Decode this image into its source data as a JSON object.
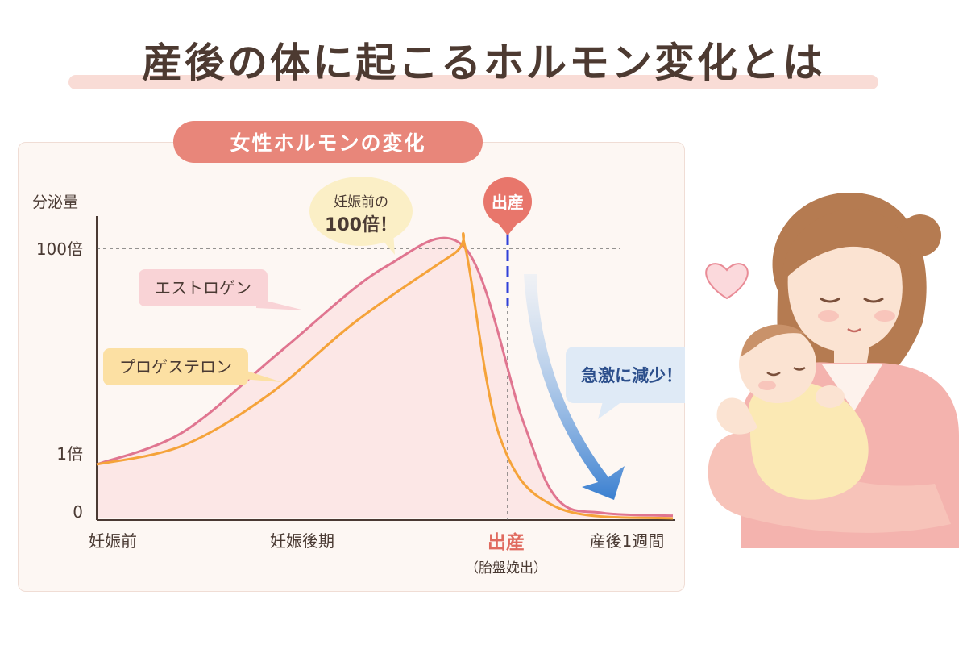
{
  "title": "産後の体に起こるホルモン変化とは",
  "chart_title": "女性ホルモンの変化",
  "colors": {
    "estrogen": "#e07590",
    "progesterone": "#f5a33a",
    "estrogen_postpartum": "#6b73cf",
    "progesterone_postpartum": "#f28a35",
    "birth_badge": "#e8766b",
    "arrow": "#3a7fd0"
  },
  "chart_data": {
    "type": "line",
    "title": "女性ホルモンの変化",
    "ylabel": "分泌量",
    "y_ticks": [
      "0",
      "1倍",
      "100倍"
    ],
    "x_ticks": [
      "妊娠前",
      "妊娠後期",
      "出産",
      "産後1週間"
    ],
    "x_sublabel": "（胎盤娩出）",
    "series": [
      {
        "name": "エストロゲン",
        "x": [
          0,
          0.15,
          0.32,
          0.5,
          0.64,
          0.74,
          0.8,
          0.88,
          1.0
        ],
        "values": [
          0.2,
          0.32,
          0.62,
          0.93,
          1.0,
          0.36,
          0.07,
          0.02,
          0.01
        ]
      },
      {
        "name": "プロゲステロン",
        "x": [
          0,
          0.15,
          0.3,
          0.45,
          0.62,
          0.64,
          0.7,
          0.8,
          1.0
        ],
        "values": [
          0.2,
          0.27,
          0.46,
          0.73,
          0.98,
          1.0,
          0.3,
          0.04,
          0.0
        ]
      }
    ],
    "reference_line": {
      "value": "100倍"
    },
    "annotations": {
      "peak_bubble_line1": "妊娠前の",
      "peak_bubble_line2": "100倍！",
      "birth_marker": "出産",
      "decline": "急激に減少！"
    }
  },
  "illustration": {
    "icon": "mother-holding-baby-illustration",
    "heart": "heart-icon"
  }
}
